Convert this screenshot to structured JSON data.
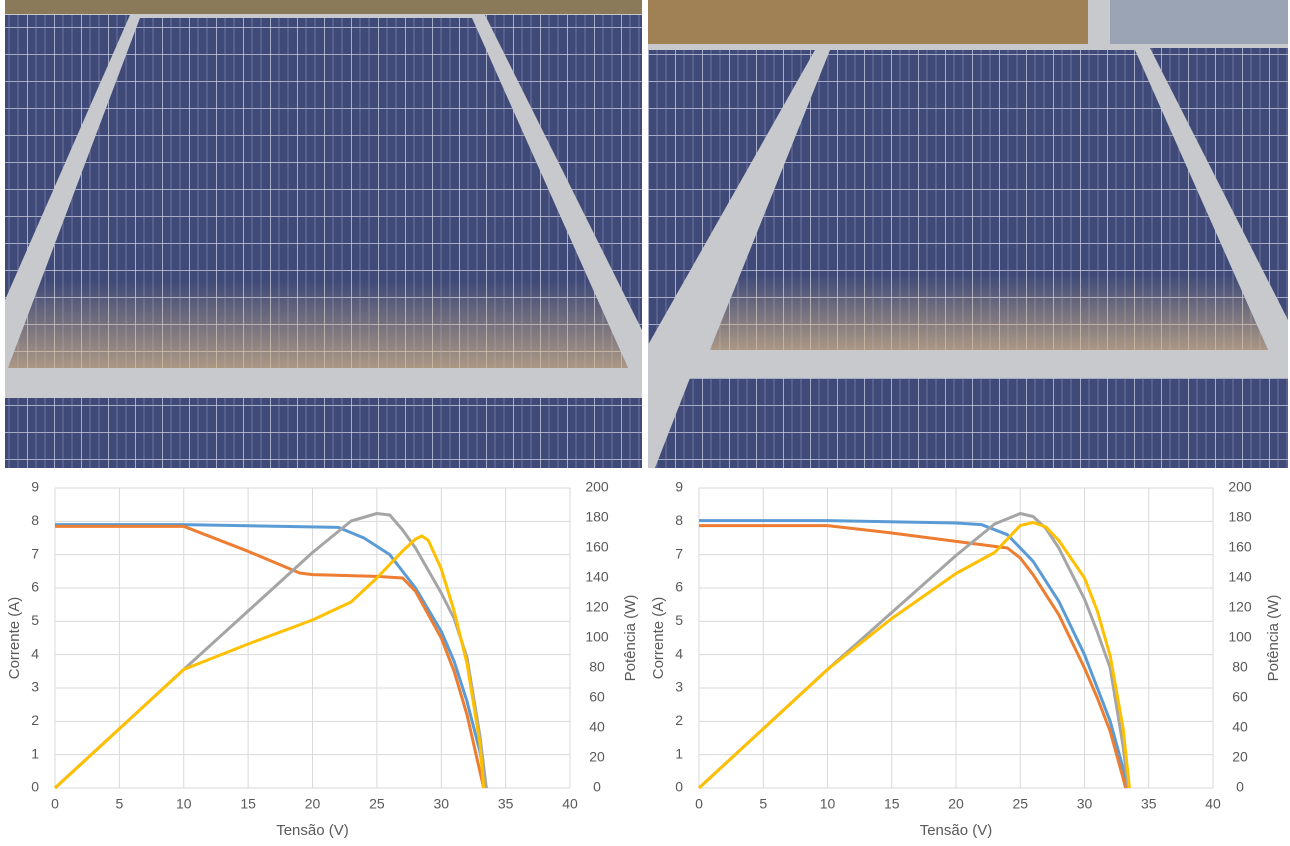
{
  "chart_data": [
    {
      "type": "line",
      "x_label": "Tensão (V)",
      "y_label": "Corrente (A)",
      "y2_label": "Potência (W)",
      "xlim": [
        0,
        40
      ],
      "xticks": [
        0,
        5,
        10,
        15,
        20,
        25,
        30,
        35,
        40
      ],
      "ylim": [
        0,
        9
      ],
      "yticks": [
        0,
        1,
        2,
        3,
        4,
        5,
        6,
        7,
        8,
        9
      ],
      "y2lim": [
        0,
        200
      ],
      "y2ticks": [
        0,
        20,
        40,
        60,
        80,
        100,
        120,
        140,
        160,
        180,
        200
      ],
      "grid": true,
      "series": [
        {
          "color": "#5b9bd5",
          "x": [
            0,
            10,
            22,
            24,
            26,
            28,
            30,
            31,
            32,
            33,
            33.5
          ],
          "values": [
            7.9,
            7.9,
            7.82,
            7.5,
            7.0,
            6.0,
            4.7,
            3.8,
            2.6,
            1.1,
            0
          ]
        },
        {
          "color": "#ed7d31",
          "x": [
            0,
            10,
            15,
            19,
            20,
            25,
            27,
            28,
            30,
            31,
            32,
            33,
            33.3
          ],
          "values": [
            7.85,
            7.85,
            7.1,
            6.45,
            6.4,
            6.35,
            6.3,
            5.9,
            4.5,
            3.5,
            2.2,
            0.5,
            0
          ]
        },
        {
          "color": "#a5a5a5",
          "axis": "y2",
          "x": [
            0,
            10,
            15,
            20,
            23,
            25,
            26,
            27,
            28,
            30,
            31,
            32,
            33,
            33.5
          ],
          "values": [
            0,
            79,
            118,
            157,
            178,
            183,
            182,
            172,
            160,
            130,
            113,
            87,
            35,
            0
          ]
        },
        {
          "color": "#ffc000",
          "axis": "y2",
          "x": [
            0,
            10,
            15,
            20,
            23,
            25,
            27,
            28,
            28.5,
            29,
            30,
            31,
            32,
            33,
            33.3
          ],
          "values": [
            0,
            79,
            96,
            112,
            124,
            140,
            158,
            166,
            168,
            165,
            146,
            118,
            83,
            30,
            0
          ]
        }
      ]
    },
    {
      "type": "line",
      "x_label": "Tensão (V)",
      "y_label": "Corrente (A)",
      "y2_label": "Potência (W)",
      "xlim": [
        0,
        40
      ],
      "xticks": [
        0,
        5,
        10,
        15,
        20,
        25,
        30,
        35,
        40
      ],
      "ylim": [
        0,
        9
      ],
      "yticks": [
        0,
        1,
        2,
        3,
        4,
        5,
        6,
        7,
        8,
        9
      ],
      "y2lim": [
        0,
        200
      ],
      "y2ticks": [
        0,
        20,
        40,
        60,
        80,
        100,
        120,
        140,
        160,
        180,
        200
      ],
      "grid": true,
      "series": [
        {
          "color": "#5b9bd5",
          "x": [
            0,
            10,
            20,
            22,
            24,
            26,
            28,
            30,
            31,
            32,
            33,
            33.4
          ],
          "values": [
            8.02,
            8.02,
            7.95,
            7.9,
            7.6,
            6.8,
            5.6,
            4.0,
            3.0,
            2.0,
            0.6,
            0
          ]
        },
        {
          "color": "#ed7d31",
          "x": [
            0,
            10,
            15,
            20,
            24,
            25,
            26,
            28,
            30,
            31,
            32,
            33,
            33.2
          ],
          "values": [
            7.87,
            7.87,
            7.65,
            7.4,
            7.2,
            6.9,
            6.4,
            5.2,
            3.6,
            2.7,
            1.7,
            0.3,
            0
          ]
        },
        {
          "color": "#a5a5a5",
          "axis": "y2",
          "x": [
            0,
            10,
            15,
            20,
            23,
            25,
            26,
            27,
            28,
            30,
            31,
            32,
            33,
            33.4
          ],
          "values": [
            0,
            79,
            117,
            155,
            176,
            183,
            181,
            173,
            160,
            126,
            104,
            80,
            28,
            0
          ]
        },
        {
          "color": "#ffc000",
          "axis": "y2",
          "x": [
            0,
            10,
            15,
            20,
            23,
            25,
            26,
            27,
            28,
            30,
            31,
            32,
            33,
            33.5
          ],
          "values": [
            0,
            79,
            113,
            143,
            157,
            175,
            177,
            174,
            165,
            140,
            118,
            88,
            40,
            0
          ]
        }
      ]
    }
  ]
}
